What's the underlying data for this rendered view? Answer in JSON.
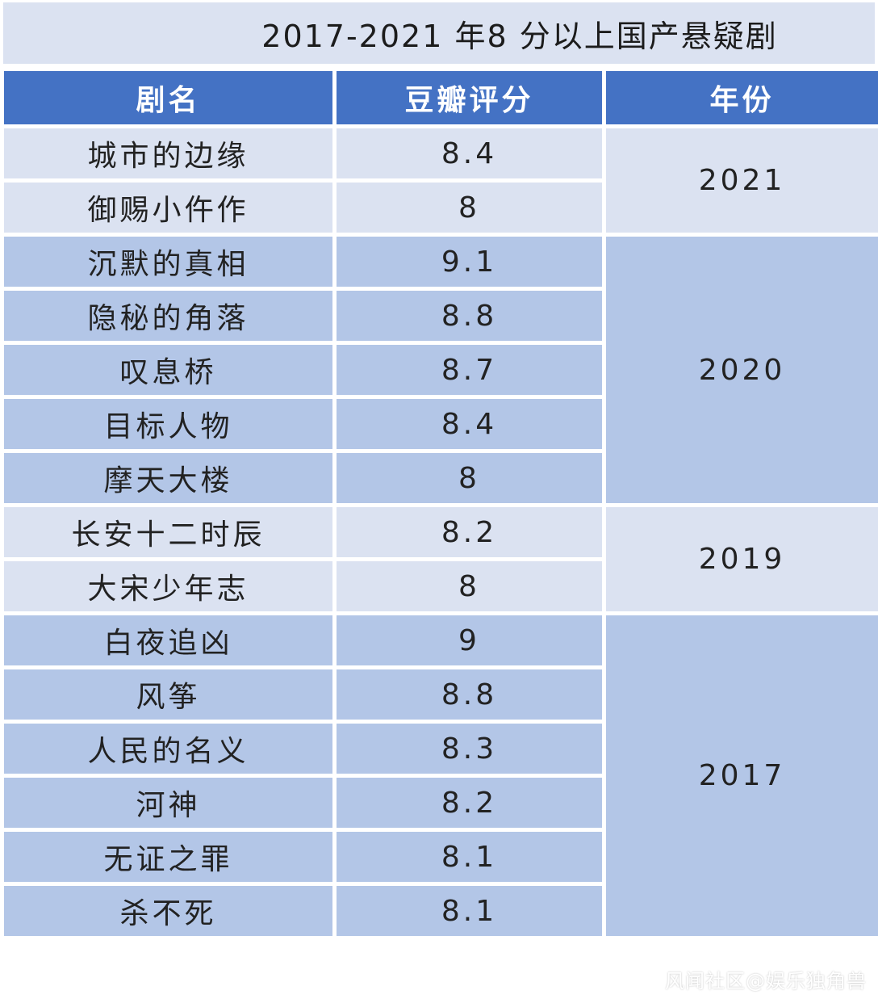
{
  "title": "2017-2021 年8 分以上国产悬疑剧",
  "headers": {
    "name": "剧名",
    "rating": "豆瓣评分",
    "year": "年份"
  },
  "groups": [
    {
      "year": "2021",
      "shade": "light",
      "rows": [
        {
          "name": "城市的边缘",
          "rating": "8.4"
        },
        {
          "name": "御赐小仵作",
          "rating": "8"
        }
      ]
    },
    {
      "year": "2020",
      "shade": "dark",
      "rows": [
        {
          "name": "沉默的真相",
          "rating": "9.1"
        },
        {
          "name": "隐秘的角落",
          "rating": "8.8"
        },
        {
          "name": "叹息桥",
          "rating": "8.7"
        },
        {
          "name": "目标人物",
          "rating": "8.4"
        },
        {
          "name": "摩天大楼",
          "rating": "8"
        }
      ]
    },
    {
      "year": "2019",
      "shade": "light",
      "rows": [
        {
          "name": "长安十二时辰",
          "rating": "8.2"
        },
        {
          "name": "大宋少年志",
          "rating": "8"
        }
      ]
    },
    {
      "year": "2017",
      "shade": "dark",
      "rows": [
        {
          "name": "白夜追凶",
          "rating": "9"
        },
        {
          "name": "风筝",
          "rating": "8.8"
        },
        {
          "name": "人民的名义",
          "rating": "8.3"
        },
        {
          "name": "河神",
          "rating": "8.2"
        },
        {
          "name": "无证之罪",
          "rating": "8.1"
        },
        {
          "name": "杀不死",
          "rating": "8.1"
        }
      ]
    }
  ],
  "credit": "风闻社区@娱乐独角兽",
  "colors": {
    "header_bg": "#4472c4",
    "row_light": "#dbe2f1",
    "row_dark": "#b3c6e7",
    "title_bg": "#dbe2f1"
  }
}
